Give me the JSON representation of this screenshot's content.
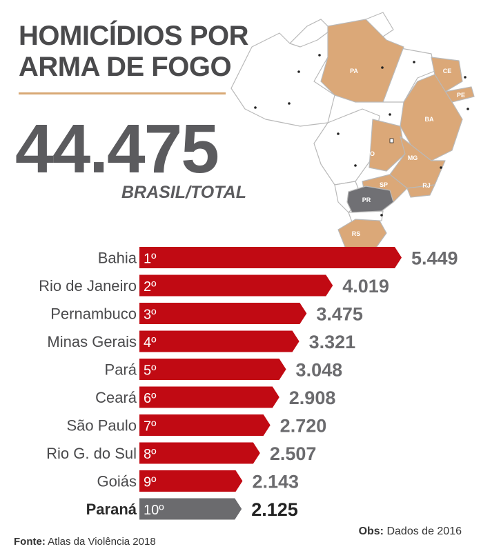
{
  "header": {
    "title_line1": "HOMICÍDIOS POR",
    "title_line2": "ARMA DE FOGO",
    "total_value": "44.475",
    "total_label": "BRASIL/TOTAL"
  },
  "map": {
    "states": [
      "PA",
      "CE",
      "PE",
      "BA",
      "GO",
      "MG",
      "SP",
      "RJ",
      "PR",
      "RS"
    ],
    "colors": {
      "highlight": "#dba878",
      "focus": "#707074",
      "base": "#ffffff",
      "border": "#b9b9b9",
      "dot": "#222222"
    }
  },
  "chart_data": {
    "type": "bar",
    "orientation": "horizontal",
    "categories": [
      "Bahia",
      "Rio de Janeiro",
      "Pernambuco",
      "Minas Gerais",
      "Pará",
      "Ceará",
      "São Paulo",
      "Rio G. do Sul",
      "Goiás",
      "Paraná"
    ],
    "ranks": [
      "1º",
      "2º",
      "3º",
      "4º",
      "5º",
      "6º",
      "7º",
      "8º",
      "9º",
      "10º"
    ],
    "values": [
      5449,
      4019,
      3475,
      3321,
      3048,
      2908,
      2720,
      2507,
      2143,
      2125
    ],
    "value_labels": [
      "5.449",
      "4.019",
      "3.475",
      "3.321",
      "3.048",
      "2.908",
      "2.720",
      "2.507",
      "2.143",
      "2.125"
    ],
    "highlight_index": 9,
    "colors": {
      "bar": "#c10a13",
      "highlight_bar": "#6b6b6e",
      "value_text": "#6b6b6e",
      "highlight_value_text": "#222222",
      "label_text": "#4a4a4c"
    }
  },
  "footer": {
    "source_label": "Fonte:",
    "source_text": "Atlas da Violência 2018",
    "note_label": "Obs:",
    "note_text": "Dados de 2016"
  }
}
